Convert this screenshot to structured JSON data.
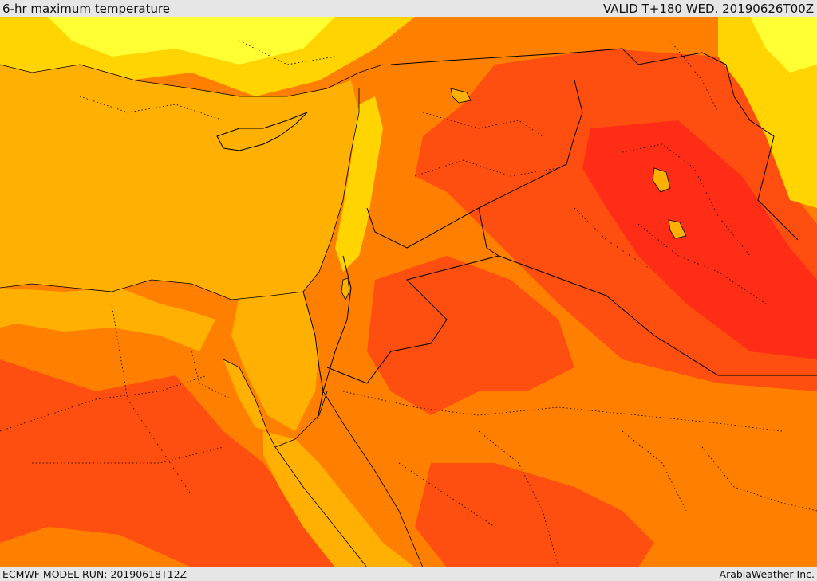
{
  "header": {
    "title": "6-hr maximum temperature",
    "valid": "VALID T+180 WED. 20190626T00Z"
  },
  "footer": {
    "model_run": "ECMWF MODEL RUN: 20190618T12Z",
    "credit": "ArabiaWeather Inc."
  },
  "palette": {
    "sea": "#ffb000",
    "warm": "#ff7f00",
    "hot": "#ff4f10",
    "very_hot": "#ff2d16",
    "cool_yellow": "#ffd400",
    "bright_yellow": "#ffff33",
    "border": "#000000"
  }
}
